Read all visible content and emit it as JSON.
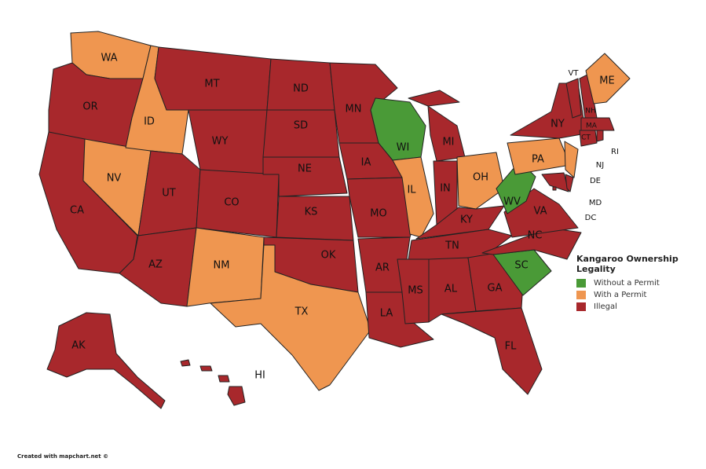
{
  "legend": {
    "title": "Kangaroo Ownership Legality",
    "items": [
      {
        "label": "Without a Permit",
        "color": "#4a9a37"
      },
      {
        "label": "With a Permit",
        "color": "#ef9650"
      },
      {
        "label": "Illegal",
        "color": "#a8282c"
      }
    ]
  },
  "credit": "Created with mapchart.net ©",
  "states": {
    "WA": "With a Permit",
    "OR": "Illegal",
    "CA": "Illegal",
    "NV": "With a Permit",
    "ID": "With a Permit",
    "MT": "Illegal",
    "WY": "Illegal",
    "UT": "Illegal",
    "CO": "Illegal",
    "AZ": "Illegal",
    "NM": "With a Permit",
    "ND": "Illegal",
    "SD": "Illegal",
    "NE": "Illegal",
    "KS": "Illegal",
    "OK": "Illegal",
    "TX": "With a Permit",
    "MN": "Illegal",
    "IA": "Illegal",
    "MO": "Illegal",
    "AR": "Illegal",
    "LA": "Illegal",
    "WI": "Without a Permit",
    "IL": "With a Permit",
    "MI": "Illegal",
    "IN": "Illegal",
    "OH": "With a Permit",
    "KY": "Illegal",
    "TN": "Illegal",
    "MS": "Illegal",
    "AL": "Illegal",
    "GA": "Illegal",
    "FL": "Illegal",
    "SC": "Without a Permit",
    "NC": "Illegal",
    "VA": "Illegal",
    "WV": "Without a Permit",
    "PA": "With a Permit",
    "NY": "Illegal",
    "NJ": "With a Permit",
    "MD": "Illegal",
    "DE": "Illegal",
    "DC": "Illegal",
    "VT": "Illegal",
    "NH": "Illegal",
    "ME": "With a Permit",
    "MA": "Illegal",
    "CT": "Illegal",
    "RI": "Illegal",
    "AK": "Illegal",
    "HI": "Illegal"
  }
}
